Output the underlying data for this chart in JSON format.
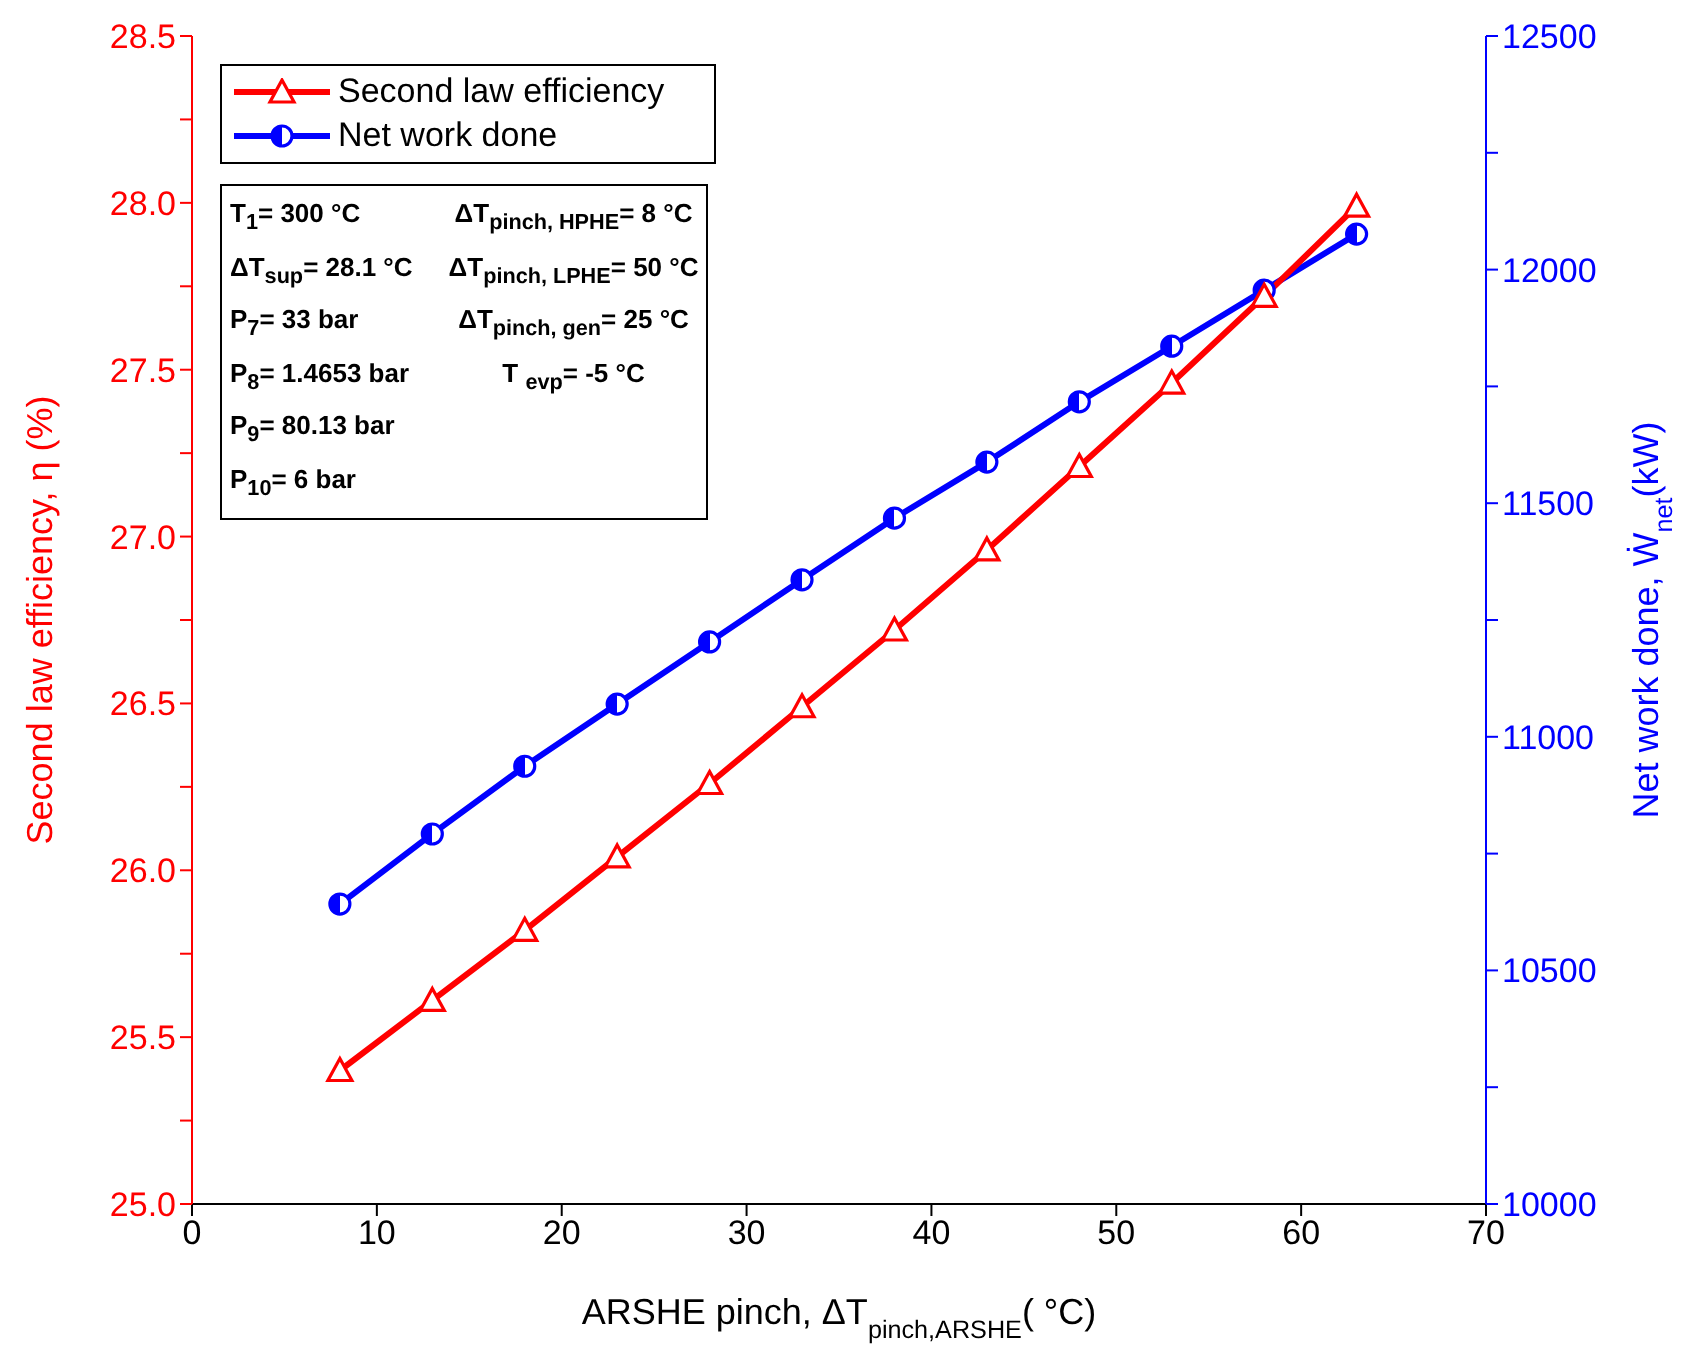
{
  "chart_data": {
    "type": "line",
    "xlabel": "ARSHE pinch, ΔT$_{pinch,ARSHE}$( °C)",
    "ylabel": "Second law efficiency, η (%)",
    "y2label": "Net work done, Ẇ$_{net}$(kW)",
    "x": [
      8,
      13,
      18,
      23,
      28,
      33,
      38,
      43,
      48,
      53,
      58,
      63
    ],
    "series": [
      {
        "name": "Second law efficiency",
        "color": "#ff0000",
        "marker": "triangle",
        "values": [
          25.4,
          25.61,
          25.82,
          26.04,
          26.26,
          26.49,
          26.72,
          26.96,
          27.21,
          27.46,
          27.72,
          27.99
        ]
      },
      {
        "name": "Net work done",
        "color": "#0000ff",
        "marker": "circle",
        "axis": "y2",
        "values": [
          10642,
          10792,
          10937,
          11070,
          11203,
          11336,
          11468,
          11588,
          11717,
          11836,
          11956,
          12076
        ]
      }
    ],
    "xlim": [
      0,
      70
    ],
    "xticks": [
      0,
      10,
      20,
      30,
      40,
      50,
      60,
      70
    ],
    "ylim": [
      25,
      28.5
    ],
    "yticks": [
      {
        "value": 25,
        "label": "25.0"
      },
      {
        "value": 25.25,
        "label": null
      },
      25.5,
      {
        "value": 25.75,
        "label": null
      },
      {
        "value": 26,
        "label": "26.0"
      },
      {
        "value": 26.25,
        "label": null
      },
      26.5,
      {
        "value": 26.75,
        "label": null
      },
      {
        "value": 27,
        "label": "27.0"
      },
      {
        "value": 27.25,
        "label": null
      },
      27.5,
      {
        "value": 27.75,
        "label": null
      },
      {
        "value": 28,
        "label": "28.0"
      },
      {
        "value": 28.25,
        "label": null
      },
      28.5
    ],
    "y2lim": [
      10000,
      12500
    ],
    "y2ticks": [
      10000,
      {
        "value": 10250,
        "label": null
      },
      10500,
      {
        "value": 10750,
        "label": null
      },
      11000,
      {
        "value": 11250,
        "label": null
      },
      11500,
      {
        "value": 11750,
        "label": null
      },
      12000,
      {
        "value": 12250,
        "label": null
      },
      12500
    ],
    "legend": "top left",
    "grid": false,
    "line_style": "solid",
    "annotations": [
      "T$_{1}$= 300 °C",
      "ΔT$_{sup}$= 28.1 °C",
      "P$_{7}$= 33 bar",
      "P$_{8}$= 1.4653 bar",
      "P$_{9}$= 80.13 bar",
      "P$_{10}$= 6 bar",
      "ΔT$_{pinch, HPHE}$= 8 °C",
      "ΔT$_{pinch, LPHE}$= 50 °C",
      "ΔT$_{pinch, gen}$= 25 °C",
      "T $_{evp}$= -5 °C"
    ]
  }
}
